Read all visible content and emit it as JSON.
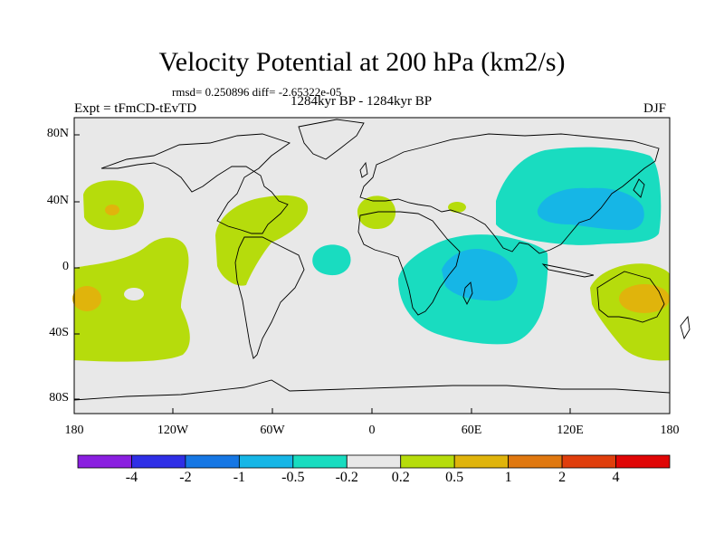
{
  "title": "Velocity Potential at 200 hPa (km2/s)",
  "stats": "rmsd= 0.250896 diff= -2.65322e-05",
  "experiment": "Expt = tFmCD-tEvTD",
  "period": "1284kyr BP - 1284kyr BP",
  "season": "DJF",
  "y_axis": {
    "ticks": [
      "80N",
      "40N",
      "0",
      "40S",
      "80S"
    ]
  },
  "x_axis": {
    "ticks": [
      "180",
      "120W",
      "60W",
      "0",
      "60E",
      "120E",
      "180"
    ]
  },
  "colorbar": {
    "labels": [
      "-4",
      "-2",
      "-1",
      "-0.5",
      "-0.2",
      "0.2",
      "0.5",
      "1",
      "2",
      "4"
    ],
    "colors": [
      "#8a1fe0",
      "#2f2fe6",
      "#1677e4",
      "#16b6e6",
      "#19dcc0",
      "#e8e8e8",
      "#b6dc0c",
      "#e0b40c",
      "#e07810",
      "#e03e0c",
      "#e00606"
    ]
  },
  "colors": {
    "land_background": "#e8e8e8",
    "positive_weak": "#b6dc0c",
    "positive_mid": "#e0b40c",
    "negative_weak": "#19dcc0",
    "negative_mid": "#16b6e6"
  }
}
